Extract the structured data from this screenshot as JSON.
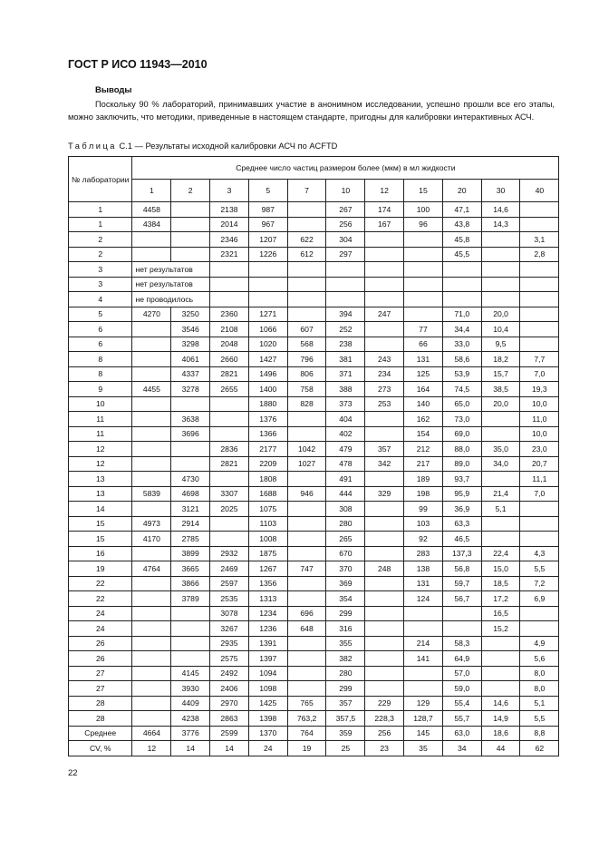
{
  "header": {
    "title": "ГОСТ Р ИСО 11943—2010"
  },
  "section": {
    "heading": "Выводы",
    "paragraph": "Поскольку 90 % лабораторий, принимавших участие в анонимном исследовании, успешно прошли все его этапы, можно заключить, что методики, приведенные в настоящем стандарте, пригодны для калибровки интерактивных АСЧ."
  },
  "table": {
    "caption_label": "Таблица",
    "caption_text": "С.1 — Результаты исходной калибровки АСЧ по ACFTD",
    "lab_header": "№ лаборатории",
    "group_header": "Среднее число частиц размером более (мкм) в мл жидкости",
    "sizes": [
      "1",
      "2",
      "3",
      "5",
      "7",
      "10",
      "12",
      "15",
      "20",
      "30",
      "40"
    ],
    "rows": [
      [
        "1",
        "4458",
        "",
        "2138",
        "987",
        "",
        "267",
        "174",
        "100",
        "47,1",
        "14,6",
        ""
      ],
      [
        "1",
        "4384",
        "",
        "2014",
        "967",
        "",
        "256",
        "167",
        "96",
        "43,8",
        "14,3",
        ""
      ],
      [
        "2",
        "",
        "",
        "2346",
        "1207",
        "622",
        "304",
        "",
        "",
        "45,8",
        "",
        "3,1"
      ],
      [
        "2",
        "",
        "",
        "2321",
        "1226",
        "612",
        "297",
        "",
        "",
        "45,5",
        "",
        "2,8"
      ],
      [
        "3",
        "нет результатов"
      ],
      [
        "3",
        "нет результатов"
      ],
      [
        "4",
        "не проводилось"
      ],
      [
        "5",
        "4270",
        "3250",
        "2360",
        "1271",
        "",
        "394",
        "247",
        "",
        "71,0",
        "20,0",
        ""
      ],
      [
        "6",
        "",
        "3546",
        "2108",
        "1066",
        "607",
        "252",
        "",
        "77",
        "34,4",
        "10,4",
        ""
      ],
      [
        "6",
        "",
        "3298",
        "2048",
        "1020",
        "568",
        "238",
        "",
        "66",
        "33,0",
        "9,5",
        ""
      ],
      [
        "8",
        "",
        "4061",
        "2660",
        "1427",
        "796",
        "381",
        "243",
        "131",
        "58,6",
        "18,2",
        "7,7"
      ],
      [
        "8",
        "",
        "4337",
        "2821",
        "1496",
        "806",
        "371",
        "234",
        "125",
        "53,9",
        "15,7",
        "7,0"
      ],
      [
        "9",
        "4455",
        "3278",
        "2655",
        "1400",
        "758",
        "388",
        "273",
        "164",
        "74,5",
        "38,5",
        "19,3"
      ],
      [
        "10",
        "",
        "",
        "",
        "1880",
        "828",
        "373",
        "253",
        "140",
        "65,0",
        "20,0",
        "10,0"
      ],
      [
        "11",
        "",
        "3638",
        "",
        "1376",
        "",
        "404",
        "",
        "162",
        "73,0",
        "",
        "11,0"
      ],
      [
        "11",
        "",
        "3696",
        "",
        "1366",
        "",
        "402",
        "",
        "154",
        "69,0",
        "",
        "10,0"
      ],
      [
        "12",
        "",
        "",
        "2836",
        "2177",
        "1042",
        "479",
        "357",
        "212",
        "88,0",
        "35,0",
        "23,0"
      ],
      [
        "12",
        "",
        "",
        "2821",
        "2209",
        "1027",
        "478",
        "342",
        "217",
        "89,0",
        "34,0",
        "20,7"
      ],
      [
        "13",
        "",
        "4730",
        "",
        "1808",
        "",
        "491",
        "",
        "189",
        "93,7",
        "",
        "11,1"
      ],
      [
        "13",
        "5839",
        "4698",
        "3307",
        "1688",
        "946",
        "444",
        "329",
        "198",
        "95,9",
        "21,4",
        "7,0"
      ],
      [
        "14",
        "",
        "3121",
        "2025",
        "1075",
        "",
        "308",
        "",
        "99",
        "36,9",
        "5,1",
        ""
      ],
      [
        "15",
        "4973",
        "2914",
        "",
        "1103",
        "",
        "280",
        "",
        "103",
        "63,3",
        "",
        ""
      ],
      [
        "15",
        "4170",
        "2785",
        "",
        "1008",
        "",
        "265",
        "",
        "92",
        "46,5",
        "",
        ""
      ],
      [
        "16",
        "",
        "3899",
        "2932",
        "1875",
        "",
        "670",
        "",
        "283",
        "137,3",
        "22,4",
        "4,3"
      ],
      [
        "19",
        "4764",
        "3665",
        "2469",
        "1267",
        "747",
        "370",
        "248",
        "138",
        "56,8",
        "15,0",
        "5,5"
      ],
      [
        "22",
        "",
        "3866",
        "2597",
        "1356",
        "",
        "369",
        "",
        "131",
        "59,7",
        "18,5",
        "7,2"
      ],
      [
        "22",
        "",
        "3789",
        "2535",
        "1313",
        "",
        "354",
        "",
        "124",
        "56,7",
        "17,2",
        "6,9"
      ],
      [
        "24",
        "",
        "",
        "3078",
        "1234",
        "696",
        "299",
        "",
        "",
        "",
        "16,5",
        ""
      ],
      [
        "24",
        "",
        "",
        "3267",
        "1236",
        "648",
        "316",
        "",
        "",
        "",
        "15,2",
        ""
      ],
      [
        "26",
        "",
        "",
        "2935",
        "1391",
        "",
        "355",
        "",
        "214",
        "58,3",
        "",
        "4,9"
      ],
      [
        "26",
        "",
        "",
        "2575",
        "1397",
        "",
        "382",
        "",
        "141",
        "64,9",
        "",
        "5,6"
      ],
      [
        "27",
        "",
        "4145",
        "2492",
        "1094",
        "",
        "280",
        "",
        "",
        "57,0",
        "",
        "8,0"
      ],
      [
        "27",
        "",
        "3930",
        "2406",
        "1098",
        "",
        "299",
        "",
        "",
        "59,0",
        "",
        "8,0"
      ],
      [
        "28",
        "",
        "4409",
        "2970",
        "1425",
        "765",
        "357",
        "229",
        "129",
        "55,4",
        "14,6",
        "5,1"
      ],
      [
        "28",
        "",
        "4238",
        "2863",
        "1398",
        "763,2",
        "357,5",
        "228,3",
        "128,7",
        "55,7",
        "14,9",
        "5,5"
      ],
      [
        "Среднее",
        "4664",
        "3776",
        "2599",
        "1370",
        "764",
        "359",
        "256",
        "145",
        "63,0",
        "18,6",
        "8,8"
      ],
      [
        "CV, %",
        "12",
        "14",
        "14",
        "24",
        "19",
        "25",
        "23",
        "35",
        "34",
        "44",
        "62"
      ]
    ]
  },
  "footer": {
    "page_number": "22"
  }
}
